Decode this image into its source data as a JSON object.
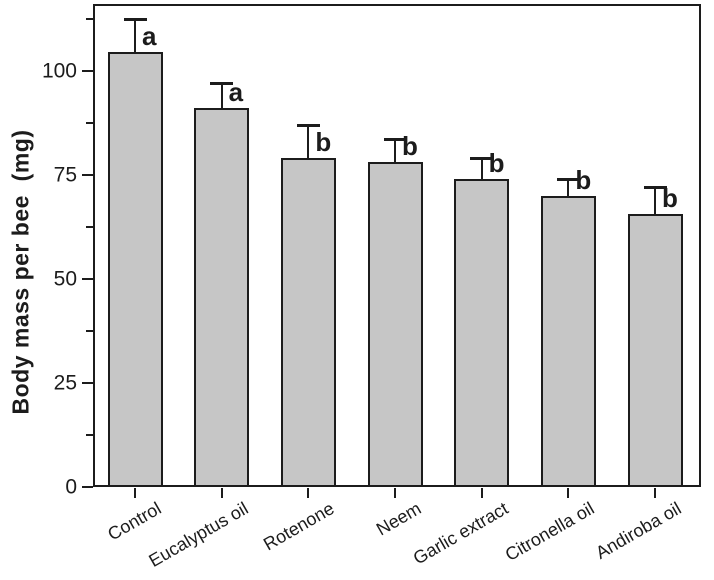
{
  "figure": {
    "background": "#ffffff"
  },
  "chart_data": {
    "type": "bar",
    "title": "",
    "xlabel": "",
    "ylabel": "Body mass per bee  (mg)",
    "categories": [
      "Control",
      "Eucalyptus oil",
      "Rotenone",
      "Neem",
      "Garlic extract",
      "Citronella oil",
      "Andiroba oil"
    ],
    "values": [
      104.5,
      91,
      79,
      78,
      74,
      70,
      65.5
    ],
    "errors": [
      7.5,
      5.5,
      7.5,
      5,
      4.5,
      3.5,
      6
    ],
    "sig_letters": [
      "a",
      "a",
      "b",
      "b",
      "b",
      "b",
      "b"
    ],
    "ylim": [
      0,
      116
    ],
    "yticks": [
      0,
      25,
      50,
      75,
      100
    ],
    "ytick_labels": [
      "0",
      "25",
      "50",
      "75",
      "100"
    ],
    "yticks_minor": [
      12.5,
      37.5,
      62.5,
      87.5,
      112.5
    ],
    "grid": false,
    "legend": null,
    "xlabel_rotation_deg": -30,
    "bar_color": "#c6c6c6",
    "bar_edge_color": "#1c1c1c",
    "axis_color": "#1c1c1c",
    "text_color": "#1c1c1c"
  }
}
